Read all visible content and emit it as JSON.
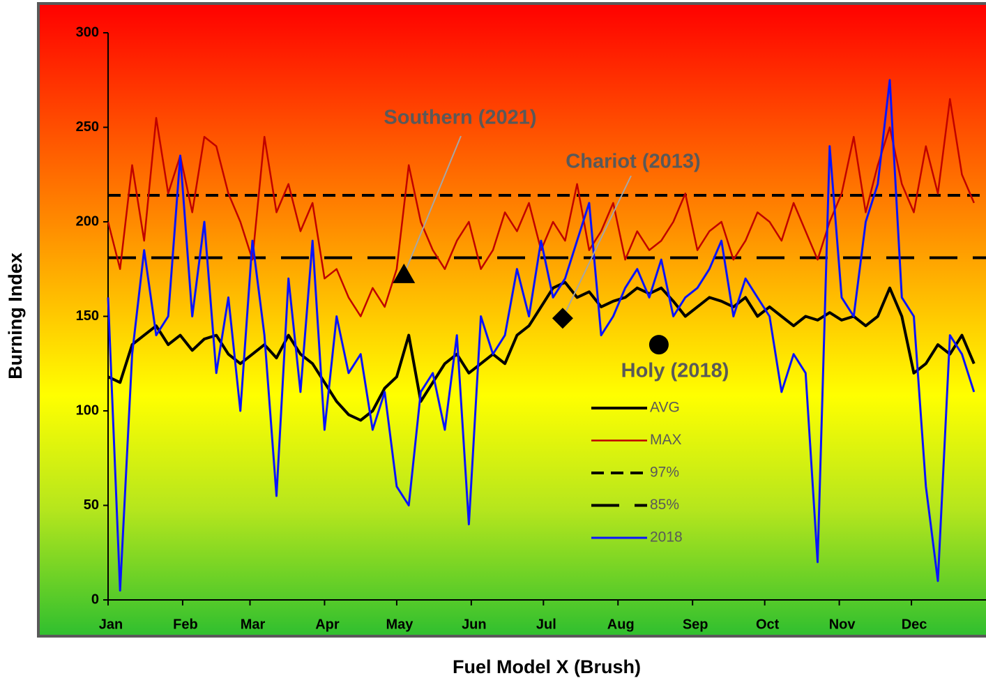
{
  "chart_data": {
    "type": "line",
    "x_title": "Fuel Model X (Brush)",
    "y_title": "Burning Index",
    "xlim": [
      1,
      366
    ],
    "ylim": [
      0,
      300
    ],
    "xticks": [
      {
        "value": 1,
        "label": "Jan"
      },
      {
        "value": 32,
        "label": "Feb"
      },
      {
        "value": 60,
        "label": "Mar"
      },
      {
        "value": 91,
        "label": "Apr"
      },
      {
        "value": 121,
        "label": "May"
      },
      {
        "value": 152,
        "label": "Jun"
      },
      {
        "value": 182,
        "label": "Jul"
      },
      {
        "value": 213,
        "label": "Aug"
      },
      {
        "value": 244,
        "label": "Sep"
      },
      {
        "value": 274,
        "label": "Oct"
      },
      {
        "value": 305,
        "label": "Nov"
      },
      {
        "value": 335,
        "label": "Dec"
      }
    ],
    "yticks": [
      0,
      50,
      100,
      150,
      200,
      250,
      300
    ],
    "x": [
      1,
      6,
      11,
      16,
      21,
      26,
      31,
      36,
      41,
      46,
      51,
      56,
      61,
      66,
      71,
      76,
      81,
      86,
      91,
      96,
      101,
      106,
      111,
      116,
      121,
      126,
      131,
      136,
      141,
      146,
      151,
      156,
      161,
      166,
      171,
      176,
      181,
      186,
      191,
      196,
      201,
      206,
      211,
      216,
      221,
      226,
      231,
      236,
      241,
      246,
      251,
      256,
      261,
      266,
      271,
      276,
      281,
      286,
      291,
      296,
      301,
      306,
      311,
      316,
      321,
      326,
      331,
      336,
      341,
      346,
      351,
      356,
      361
    ],
    "series": [
      {
        "name": "AVG",
        "color": "#000000",
        "width": 4,
        "values": [
          118,
          115,
          135,
          140,
          145,
          135,
          140,
          132,
          138,
          140,
          130,
          125,
          130,
          135,
          128,
          140,
          130,
          125,
          115,
          105,
          98,
          95,
          100,
          112,
          118,
          140,
          105,
          115,
          125,
          130,
          120,
          125,
          130,
          125,
          140,
          145,
          155,
          165,
          168,
          160,
          163,
          155,
          158,
          160,
          165,
          162,
          165,
          158,
          150,
          155,
          160,
          158,
          155,
          160,
          150,
          155,
          150,
          145,
          150,
          148,
          152,
          148,
          150,
          145,
          150,
          165,
          150,
          120,
          125,
          135,
          130,
          140,
          125
        ]
      },
      {
        "name": "MAX",
        "color": "#c00000",
        "width": 2.5,
        "values": [
          200,
          175,
          230,
          190,
          255,
          215,
          235,
          205,
          245,
          240,
          215,
          200,
          180,
          245,
          205,
          220,
          195,
          210,
          170,
          175,
          160,
          150,
          165,
          155,
          175,
          230,
          200,
          185,
          175,
          190,
          200,
          175,
          185,
          205,
          195,
          210,
          185,
          200,
          190,
          220,
          185,
          195,
          210,
          180,
          195,
          185,
          190,
          200,
          215,
          185,
          195,
          200,
          180,
          190,
          205,
          200,
          190,
          210,
          195,
          180,
          200,
          215,
          245,
          205,
          230,
          250,
          220,
          205,
          240,
          215,
          265,
          225,
          210
        ]
      },
      {
        "name": "2018",
        "color": "#0a14ff",
        "width": 3,
        "values": [
          160,
          5,
          130,
          185,
          140,
          150,
          235,
          150,
          200,
          120,
          160,
          100,
          190,
          140,
          55,
          170,
          110,
          190,
          90,
          150,
          120,
          130,
          90,
          110,
          60,
          50,
          110,
          120,
          90,
          140,
          40,
          150,
          130,
          140,
          175,
          150,
          190,
          160,
          170,
          190,
          210,
          140,
          150,
          165,
          175,
          160,
          180,
          150,
          160,
          165,
          175,
          190,
          150,
          170,
          160,
          150,
          110,
          130,
          120,
          20,
          240,
          160,
          150,
          200,
          220,
          275,
          160,
          150,
          60,
          10,
          140,
          130,
          110
        ]
      }
    ],
    "reference_lines": [
      {
        "name": "97%",
        "value": 214,
        "dash": "18,10"
      },
      {
        "name": "85%",
        "value": 181,
        "dash": "40,22"
      }
    ],
    "legend_order": [
      "AVG",
      "MAX",
      "97%",
      "85%",
      "2018"
    ],
    "annotations": [
      {
        "text": "Southern (2021)",
        "x": 124,
        "y": 172,
        "marker": "triangle"
      },
      {
        "text": "Chariot (2013)",
        "x": 190,
        "y": 149,
        "marker": "diamond"
      },
      {
        "text": "Holy (2018)",
        "x": 230,
        "y": 135,
        "marker": "circle"
      }
    ]
  }
}
